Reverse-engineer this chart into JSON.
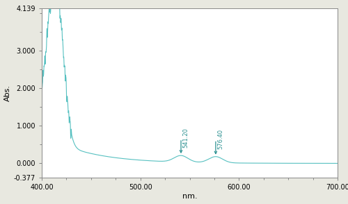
{
  "xlim": [
    400.0,
    700.0
  ],
  "ylim": [
    -0.377,
    4.139
  ],
  "xlabel": "nm.",
  "ylabel": "Abs.",
  "yticks": [
    -0.377,
    0.0,
    1.0,
    2.0,
    3.0,
    4.139
  ],
  "ytick_labels": [
    "-0.377",
    "0.000",
    "1.000",
    "2.000",
    "3.000",
    "4.139"
  ],
  "xticks": [
    400.0,
    500.0,
    600.0,
    700.0
  ],
  "xtick_labels": [
    "400.00",
    "500.00",
    "600.00",
    "700.00"
  ],
  "line_color": "#4dbdbd",
  "annotation_color": "#2a9090",
  "peak1_x": 541.2,
  "peak1_label": "541.20",
  "peak2_x": 576.4,
  "peak2_label": "576.40",
  "background_color": "#ffffff",
  "spine_color": "#888888",
  "fig_bg": "#e8e8e0"
}
